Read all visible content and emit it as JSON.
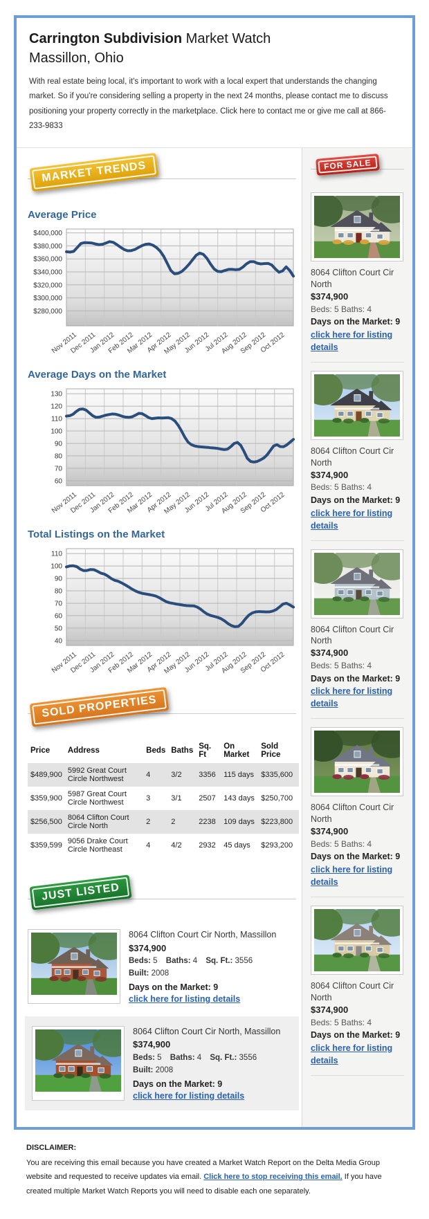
{
  "header": {
    "title_bold": "Carrington Subdivision",
    "title_rest": " Market Watch",
    "subtitle": "Massillon, Ohio",
    "intro": "With real estate being local, it's important to work with a local expert that understands the changing market. So if you're considering selling a property in the next 24 months, please contact me to discuss positioning your property correctly in the marketplace. Click here to contact me or give me call at 866-233-9833"
  },
  "badges": {
    "market_trends": {
      "label": "MARKET TRENDS",
      "color_top": "#f2c437",
      "color_bottom": "#dc9e05"
    },
    "for_sale": {
      "label": "FOR SALE",
      "color_top": "#e14b42",
      "color_bottom": "#b51f16"
    },
    "sold_properties": {
      "label": "SOLD PROPERTIES",
      "color_top": "#ee9434",
      "color_bottom": "#d4731c"
    },
    "just_listed": {
      "label": "JUST LISTED",
      "color_top": "#2f9b42",
      "color_bottom": "#167029"
    }
  },
  "colors": {
    "frame_border": "#6d9ed6",
    "heading_blue": "#336699",
    "link_blue": "#2a62b0",
    "chart_line": "#2a4d7b",
    "sidebar_bg": "#f4f4f3",
    "table_stripe": "#e3e3e3",
    "alt_item_bg": "#efefef"
  },
  "chart_data": [
    {
      "type": "line",
      "title": "Average Price",
      "xlabel": "",
      "ylabel": "",
      "x_categories": [
        "Nov 2011",
        "Dec 2011",
        "Jan 2012",
        "Feb 2012",
        "Mar 2012",
        "Apr 2012",
        "May 2012",
        "Jun 2012",
        "Jul 2012",
        "Aug 2012",
        "Sep 2012",
        "Oct 2012"
      ],
      "y_ticks": [
        280000,
        300000,
        320000,
        340000,
        360000,
        380000,
        400000
      ],
      "y_tick_labels": [
        "$280,000",
        "$300,000",
        "$320,000",
        "$340,000",
        "$360,000",
        "$380,000",
        "$400,000"
      ],
      "ylim": [
        257000,
        406000
      ],
      "line_color": "#2a4d7b",
      "values": [
        371000,
        370500,
        371500,
        377500,
        383500,
        385000,
        384800,
        384500,
        383000,
        382000,
        382500,
        384500,
        386500,
        385500,
        382000,
        378000,
        374500,
        372500,
        372800,
        374500,
        377500,
        380500,
        382500,
        383000,
        381000,
        377500,
        372000,
        364000,
        353000,
        342000,
        337000,
        337800,
        340500,
        345500,
        351500,
        358500,
        365500,
        369000,
        367000,
        361000,
        352000,
        344500,
        340800,
        340300,
        342300,
        343800,
        344000,
        343300,
        343800,
        347500,
        352500,
        355800,
        355800,
        353300,
        352300,
        352800,
        353000,
        350500,
        344500,
        339500,
        341500,
        347800,
        342000,
        333500
      ]
    },
    {
      "type": "line",
      "title": "Average Days on the Market",
      "xlabel": "",
      "ylabel": "",
      "x_categories": [
        "Nov 2011",
        "Dec 2011",
        "Jan 2012",
        "Feb 2012",
        "Mar 2012",
        "Apr 2012",
        "May 2012",
        "Jun 2012",
        "Jul 2012",
        "Aug 2012",
        "Sep 2012",
        "Oct 2012"
      ],
      "y_ticks": [
        60,
        70,
        80,
        90,
        100,
        110,
        120,
        130
      ],
      "y_tick_labels": [
        "60",
        "70",
        "80",
        "90",
        "100",
        "110",
        "120",
        "130"
      ],
      "ylim": [
        56,
        134
      ],
      "line_color": "#2a4d7b",
      "values": [
        112,
        112.3,
        113.5,
        115.8,
        117.5,
        117.8,
        116.8,
        114.5,
        112.3,
        111,
        111.2,
        112,
        112.8,
        113.3,
        113.7,
        113.5,
        112.8,
        111.8,
        111.2,
        111,
        111.5,
        112.8,
        114.2,
        114,
        112.5,
        110.8,
        110,
        110.3,
        110.6,
        110.5,
        110.6,
        110.7,
        110,
        108,
        104.5,
        100,
        95,
        91,
        89,
        88,
        87.5,
        87.2,
        87,
        86.8,
        86.5,
        86.3,
        86,
        85.5,
        85,
        85.5,
        87.5,
        90,
        90.8,
        88.5,
        83.5,
        78,
        75.5,
        75,
        75.5,
        76.8,
        78.3,
        80.8,
        84.3,
        88,
        89,
        87.5,
        87.3,
        88.8,
        91,
        93.3
      ]
    },
    {
      "type": "line",
      "title": "Total Listings on the Market",
      "xlabel": "",
      "ylabel": "",
      "x_categories": [
        "Nov 2011",
        "Dec 2011",
        "Jan 2012",
        "Feb 2012",
        "Mar 2012",
        "Apr 2012",
        "May 2012",
        "Jun 2012",
        "Jul 2012",
        "Aug 2012",
        "Sep 2012",
        "Oct 2012"
      ],
      "y_ticks": [
        40,
        50,
        60,
        70,
        80,
        90,
        100,
        110
      ],
      "y_tick_labels": [
        "40",
        "50",
        "60",
        "70",
        "80",
        "90",
        "100",
        "110"
      ],
      "ylim": [
        36,
        114
      ],
      "line_color": "#2a4d7b",
      "values": [
        99.3,
        100,
        100.2,
        99.5,
        97.5,
        96.3,
        96.4,
        97.2,
        97,
        95.8,
        94.3,
        93.5,
        92,
        90,
        88.5,
        87.8,
        86.5,
        85,
        83.3,
        81.5,
        80,
        78.8,
        78,
        77.5,
        77,
        76.5,
        75.8,
        74.5,
        72.8,
        71.3,
        70.4,
        69.9,
        69.4,
        68.9,
        68.4,
        68.1,
        68,
        67.9,
        67,
        65.3,
        63,
        61.2,
        60.1,
        59.4,
        58.6,
        57.5,
        55.8,
        53.6,
        52,
        51.1,
        51.4,
        53.8,
        57.2,
        60.3,
        62.2,
        63,
        63.3,
        63.2,
        63,
        63.1,
        63.7,
        64.9,
        67.1,
        69.4,
        70,
        68.6,
        66.9
      ]
    }
  ],
  "sidebar": {
    "listings": [
      {
        "address": "8064 Clifton Court Cir North",
        "price": "$374,900",
        "beds_baths": "Beds: 5 Baths: 4",
        "days": "Days on the Market: 9",
        "link_label": "click here for listing details",
        "photo": {
          "sky": "#9fae8a",
          "sky2": "#c9d4b6",
          "tree": "#46663a",
          "roof": "#50505a",
          "wall": "#ece8da",
          "door": "#7a2a20",
          "grass": "#5a9140",
          "path": "#c8897e",
          "bush": "#d8a23a"
        }
      },
      {
        "address": "8064 Clifton Court Cir North",
        "price": "$374,900",
        "beds_baths": "Beds: 5 Baths: 4",
        "days": "Days on the Market: 9",
        "link_label": "click here for listing details",
        "photo": {
          "sky": "#a9c9ea",
          "sky2": "#dce9f6",
          "tree": "#5d8049",
          "roof": "#3f3f48",
          "wall": "#e0d5b2",
          "door": "#7a4a28",
          "grass": "#5d9a44",
          "path": "#b9b29e",
          "bush": "#3a6a2e"
        }
      },
      {
        "address": "8064 Clifton Court Cir North",
        "price": "$374,900",
        "beds_baths": "Beds: 5 Baths: 4",
        "days": "Days on the Market: 9",
        "link_label": "click here for listing details",
        "photo": {
          "sky": "#e6e6e2",
          "sky2": "#f4f4f0",
          "tree": "#6d8c5a",
          "roof": "#70707a",
          "wall": "#b4c2ca",
          "door": "#5a4a3a",
          "grass": "#639a4c",
          "path": "#a8a8a0",
          "bush": "#3f6f33"
        }
      },
      {
        "address": "8064 Clifton Court Cir North",
        "price": "$374,900",
        "beds_baths": "Beds: 5 Baths: 4",
        "days": "Days on the Market: 9",
        "link_label": "click here for listing details",
        "photo": {
          "sky": "#5d7544",
          "sky2": "#7e9a5e",
          "tree": "#35512a",
          "roof": "#707684",
          "wall": "#efe8d6",
          "door": "#4a3a2a",
          "grass": "#529440",
          "path": "#b0a890",
          "bush": "#8e3040"
        }
      },
      {
        "address": "8064 Clifton Court Cir North",
        "price": "$374,900",
        "beds_baths": "Beds: 5 Baths: 4",
        "days": "Days on the Market: 9",
        "link_label": "click here for listing details",
        "photo": {
          "sky": "#b5d2ee",
          "sky2": "#e2eefa",
          "tree": "#537e41",
          "roof": "#8b8178",
          "wall": "#d9caa6",
          "door": "#8a8a8a",
          "grass": "#579644",
          "path": "#c2bcae",
          "bush": "#3c6c30"
        }
      }
    ]
  },
  "sold": {
    "headers": [
      "Price",
      "Address",
      "Beds",
      "Baths",
      "Sq. Ft",
      "On Market",
      "Sold Price"
    ],
    "rows": [
      [
        "$489,900",
        "5992 Great Court Circle Northwest",
        "4",
        "3/2",
        "3356",
        "115 days",
        "$335,600"
      ],
      [
        "$359,900",
        "5987 Great Court Circle Northwest",
        "3",
        "3/1",
        "2507",
        "143 days",
        "$250,700"
      ],
      [
        "$256,500",
        "8064 Clifton Court Circle North",
        "2",
        "2",
        "2238",
        "109 days",
        "$223,800"
      ],
      [
        "$359,599",
        "9056 Drake Court Circle Northeast",
        "4",
        "4/2",
        "2932",
        "45 days",
        "$293,200"
      ]
    ]
  },
  "just_listed": {
    "items": [
      {
        "address": "8064 Clifton Court Cir North, Massillon",
        "price": "$374,900",
        "specs": [
          {
            "label": "Beds:",
            "value": "5"
          },
          {
            "label": "Baths:",
            "value": "4"
          },
          {
            "label": "Sq. Ft.:",
            "value": "3556"
          },
          {
            "label": "Built:",
            "value": "2008"
          }
        ],
        "days": "Days on the Market: 9",
        "link_label": "click here for listing details",
        "photo": {
          "sky": "#8fb8e0",
          "sky2": "#d6e6f4",
          "tree": "#4d7a3c",
          "roof": "#6e6055",
          "wall": "#a9593a",
          "door": "#4a3020",
          "grass": "#4f8e3a",
          "path": "#8a8a8a",
          "bush": "#7a3a2a"
        }
      },
      {
        "address": "8064 Clifton Court Cir North, Massillon",
        "price": "$374,900",
        "specs": [
          {
            "label": "Beds:",
            "value": "5"
          },
          {
            "label": "Baths:",
            "value": "4"
          },
          {
            "label": "Sq. Ft.:",
            "value": "3556"
          },
          {
            "label": "Built:",
            "value": "2008"
          }
        ],
        "days": "Days on the Market: 9",
        "link_label": "click here for listing details",
        "photo": {
          "sky": "#4585d6",
          "sky2": "#9cc2ec",
          "tree": "#4d7a3c",
          "roof": "#7a695c",
          "wall": "#a2512f",
          "door": "#3a2a1a",
          "grass": "#51a040",
          "path": "#999999",
          "bush": "#355f2a"
        }
      }
    ]
  },
  "disclaimer": {
    "title": "DISCLAIMER:",
    "text_before": "You are receiving this email because you have created a Market Watch Report on the Delta Media Group website and requested to receive updates via email. ",
    "link_label": "Click here to stop receiving this email.",
    "text_after": " If you have created multiple Market Watch Reports you will need to disable each one separately."
  }
}
